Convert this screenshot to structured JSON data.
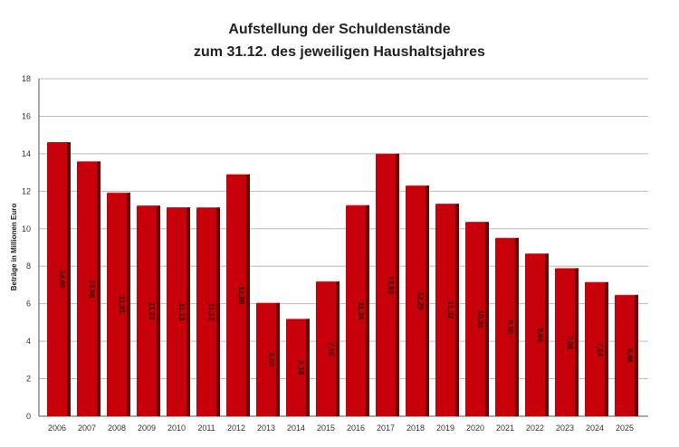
{
  "chart_data": {
    "type": "bar",
    "title_line1": "Aufstellung der Schuldenstände",
    "title_line2": "zum 31.12. des jeweiligen Haushaltsjahres",
    "ylabel": "Beträge in Millionen Euro",
    "xlabel": "",
    "ylim": [
      0,
      18
    ],
    "yticks": [
      "0",
      "2",
      "4",
      "6",
      "8",
      "10",
      "12",
      "14",
      "16",
      "18"
    ],
    "grid": true,
    "categories": [
      "2006",
      "2007",
      "2008",
      "2009",
      "2010",
      "2011",
      "2012",
      "2013",
      "2014",
      "2015",
      "2016",
      "2017",
      "2018",
      "2019",
      "2020",
      "2021",
      "2022",
      "2023",
      "2024",
      "2025"
    ],
    "values": [
      14.6,
      13.58,
      11.91,
      11.22,
      11.13,
      11.12,
      12.89,
      6.03,
      5.18,
      7.18,
      11.24,
      13.99,
      12.29,
      11.32,
      10.35,
      9.5,
      8.66,
      7.88,
      7.14,
      6.46
    ],
    "value_labels": [
      "14,60",
      "13,58",
      "11,91",
      "11,22",
      "11,13",
      "11,12",
      "12,89",
      "6,03",
      "5,18",
      "7,18",
      "11,24",
      "13,99",
      "12,29",
      "11,32",
      "10,35",
      "9,50",
      "8,66",
      "7,88",
      "7,14",
      "6,46"
    ],
    "colors": {
      "bar_front": "#c8000a",
      "bar_side": "#6e0004",
      "bar_top": "#e0262e",
      "grid": "#bbbbbb",
      "axis": "#555555"
    }
  }
}
